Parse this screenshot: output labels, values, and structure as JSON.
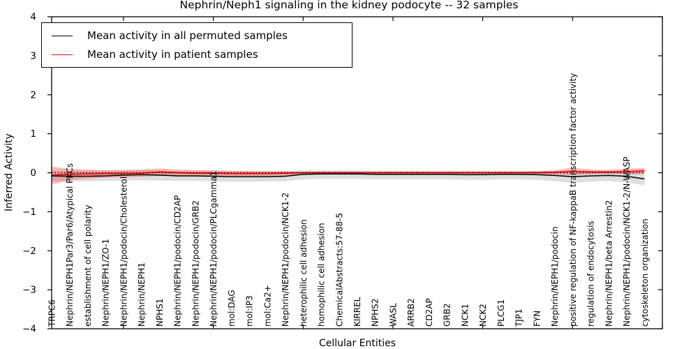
{
  "legend": {
    "items": [
      {
        "label": "Mean activity in all permuted samples",
        "color": "#000000"
      },
      {
        "label": "Mean activity in patient samples",
        "color": "#ff0000"
      }
    ]
  },
  "chart_data": {
    "type": "line",
    "title": "Nephrin/Neph1 signaling in the kidney podocyte -- 32 samples",
    "xlabel": "Cellular Entities",
    "ylabel": "Inferred Activity",
    "ylim": [
      -4,
      4
    ],
    "yticks": [
      4,
      3,
      2,
      1,
      0,
      -1,
      -2,
      -3,
      -4
    ],
    "xlim": [
      0,
      34
    ],
    "xticks": [
      4,
      9,
      14,
      19,
      24,
      29,
      34
    ],
    "grid": false,
    "legend_position": "upper left",
    "zero_reference_line": {
      "y": 0,
      "style": "dotted",
      "color": "#000000"
    },
    "categories": [
      "TRPC6",
      "Nephrin/NEPH1Par3/Par6/Atypical PKCs",
      "establishment of cell polarity",
      "Nephrin/NEPH1/ZO-1",
      "Nephrin/NEPH1/podocin/Cholesterol",
      "Nephrin/NEPH1",
      "NPHS1",
      "Nephrin/NEPH1/podocin/CD2AP",
      "Nephrin/NEPH1/podocin/GRB2",
      "Nephrin/NEPH1/podocin/PLCgamma1",
      "mol:DAG",
      "mol:IP3",
      "mol:Ca2+",
      "Nephrin/NEPH1/podocin/NCK1-2",
      "heterophilic cell adhesion",
      "homophilic cell adhesion",
      "ChemicalAbstracts:57-88-5",
      "KIRREL",
      "NPHS2",
      "WASL",
      "ARRB2",
      "CD2AP",
      "GRB2",
      "NCK1",
      "NCK2",
      "PLCG1",
      "TJP1",
      "FYN",
      "Nephrin/NEPH1/podocin",
      "positive regulation of NF-kappaB transcription factor activity",
      "regulation of endocytosis",
      "Nephrin/NEPH1/beta Arrestin2",
      "Nephrin/NEPH1/podocin/NCK1-2/N-WASP",
      "cytoskeleton organization"
    ],
    "series": [
      {
        "name": "Mean activity in all permuted samples",
        "color": "#000000",
        "line_width": 1.5,
        "band_color": "#000000",
        "band_opacity": 0.13,
        "values": [
          -0.08,
          -0.09,
          -0.09,
          -0.08,
          -0.06,
          -0.05,
          -0.06,
          -0.08,
          -0.08,
          -0.09,
          -0.1,
          -0.1,
          -0.1,
          -0.09,
          -0.04,
          -0.03,
          -0.03,
          -0.03,
          -0.04,
          -0.04,
          -0.04,
          -0.04,
          -0.04,
          -0.05,
          -0.05,
          -0.04,
          -0.04,
          -0.05,
          -0.07,
          -0.1,
          -0.08,
          -0.07,
          -0.09,
          -0.16
        ],
        "band_upper": [
          0.06,
          0.05,
          0.05,
          0.05,
          0.06,
          0.07,
          0.06,
          0.05,
          0.05,
          0.05,
          0.04,
          0.04,
          0.04,
          0.04,
          0.06,
          0.06,
          0.06,
          0.06,
          0.05,
          0.05,
          0.05,
          0.05,
          0.05,
          0.05,
          0.05,
          0.05,
          0.05,
          0.05,
          0.05,
          0.04,
          0.05,
          0.05,
          0.04,
          0.03
        ],
        "band_lower": [
          -0.21,
          -0.22,
          -0.22,
          -0.21,
          -0.2,
          -0.19,
          -0.2,
          -0.21,
          -0.21,
          -0.22,
          -0.23,
          -0.23,
          -0.22,
          -0.22,
          -0.17,
          -0.16,
          -0.16,
          -0.16,
          -0.17,
          -0.17,
          -0.17,
          -0.17,
          -0.17,
          -0.18,
          -0.18,
          -0.17,
          -0.17,
          -0.18,
          -0.22,
          -0.26,
          -0.23,
          -0.21,
          -0.25,
          -0.32
        ]
      },
      {
        "name": "Mean activity in patient samples",
        "color": "#ff0000",
        "line_width": 1.7,
        "band_color": "#ff0000",
        "band_opacity": 0.28,
        "values": [
          -0.06,
          -0.04,
          -0.03,
          -0.02,
          -0.02,
          -0.01,
          0.02,
          0.0,
          -0.01,
          -0.01,
          -0.02,
          -0.02,
          -0.02,
          -0.01,
          0.0,
          0.0,
          0.0,
          0.0,
          0.0,
          0.0,
          0.0,
          0.0,
          0.0,
          0.0,
          0.0,
          0.0,
          0.0,
          0.0,
          0.01,
          0.04,
          0.02,
          0.02,
          0.03,
          0.05
        ],
        "band_upper": [
          0.16,
          0.1,
          0.08,
          0.07,
          0.07,
          0.08,
          0.11,
          0.08,
          0.07,
          0.06,
          0.05,
          0.04,
          0.04,
          0.04,
          0.03,
          0.03,
          0.03,
          0.03,
          0.03,
          0.03,
          0.03,
          0.03,
          0.03,
          0.03,
          0.03,
          0.03,
          0.03,
          0.04,
          0.06,
          0.13,
          0.08,
          0.07,
          0.1,
          0.12
        ],
        "band_lower": [
          -0.3,
          -0.19,
          -0.15,
          -0.12,
          -0.11,
          -0.1,
          -0.08,
          -0.08,
          -0.09,
          -0.09,
          -0.08,
          -0.08,
          -0.08,
          -0.07,
          -0.04,
          -0.03,
          -0.03,
          -0.03,
          -0.03,
          -0.03,
          -0.03,
          -0.03,
          -0.03,
          -0.03,
          -0.03,
          -0.03,
          -0.03,
          -0.04,
          -0.05,
          -0.06,
          -0.04,
          -0.03,
          -0.04,
          -0.03
        ]
      }
    ]
  }
}
